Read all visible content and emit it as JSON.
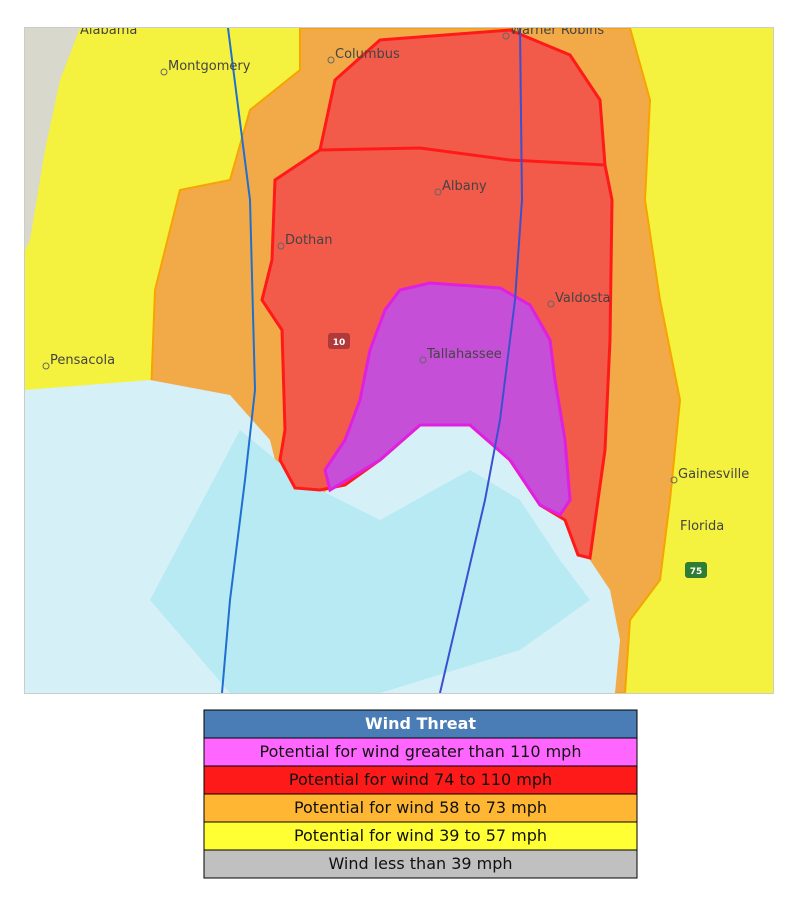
{
  "map": {
    "labels": [
      {
        "text": "Alabama"
      },
      {
        "text": "Montgomery"
      },
      {
        "text": "Columbus"
      },
      {
        "text": "Warner Robins"
      },
      {
        "text": "Albany"
      },
      {
        "text": "Dothan"
      },
      {
        "text": "Valdosta"
      },
      {
        "text": "Pensacola"
      },
      {
        "text": "Tallahassee"
      },
      {
        "text": "Gainesville"
      },
      {
        "text": "Florida"
      },
      {
        "text": "10"
      },
      {
        "text": "75"
      }
    ]
  },
  "legend": {
    "title": "Wind Threat",
    "items": [
      {
        "label": "Potential for wind greater than 110 mph",
        "color": "#ff66ff"
      },
      {
        "label": "Potential for wind 74 to 110 mph",
        "color": "#ff1a1a"
      },
      {
        "label": "Potential for wind 58 to 73 mph",
        "color": "#ffb733"
      },
      {
        "label": "Potential for wind 39 to 57 mph",
        "color": "#ffff33"
      },
      {
        "label": "Wind less than 39 mph",
        "color": "#c0c0c0"
      }
    ]
  }
}
